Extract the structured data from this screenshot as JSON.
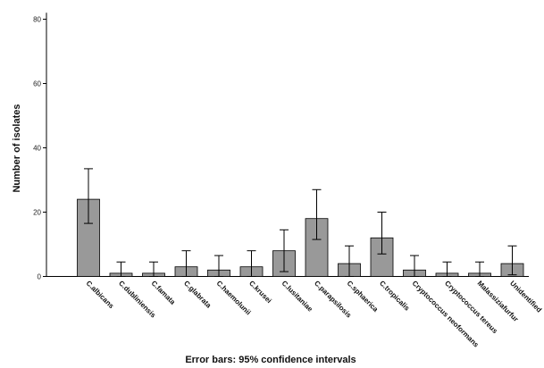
{
  "chart_data": {
    "type": "bar",
    "categories": [
      "C.albicans",
      "C.dubliniensis",
      "C.famata",
      "C.glabrata",
      "C.haemolunii",
      "C.krusei",
      "C.lusitaniae",
      "C.parapsilosis",
      "C.sphaerica",
      "C.tropicalis",
      "Cryptococcus neoformans",
      "Cryptococcus tereus",
      "Malassiziafurfur",
      "Unidentified"
    ],
    "values": [
      24,
      1,
      1,
      3,
      2,
      3,
      8,
      18,
      4,
      12,
      2,
      1,
      1,
      4
    ],
    "error_low": [
      16.5,
      0,
      0,
      0,
      0,
      0,
      1.5,
      11.5,
      0,
      7,
      0,
      0,
      0,
      0.5
    ],
    "error_high": [
      33.5,
      4.5,
      4.5,
      8,
      6.5,
      8,
      14.5,
      27,
      9.5,
      20,
      6.5,
      4.5,
      4.5,
      9.5
    ],
    "ylabel": "Number of isolates",
    "xlabel": "",
    "yticks": [
      0,
      20,
      40,
      60,
      80
    ],
    "ylim": [
      0,
      82
    ],
    "bar_color": "#999999",
    "footnote": "Error bars: 95% confidence intervals",
    "grid": false
  }
}
